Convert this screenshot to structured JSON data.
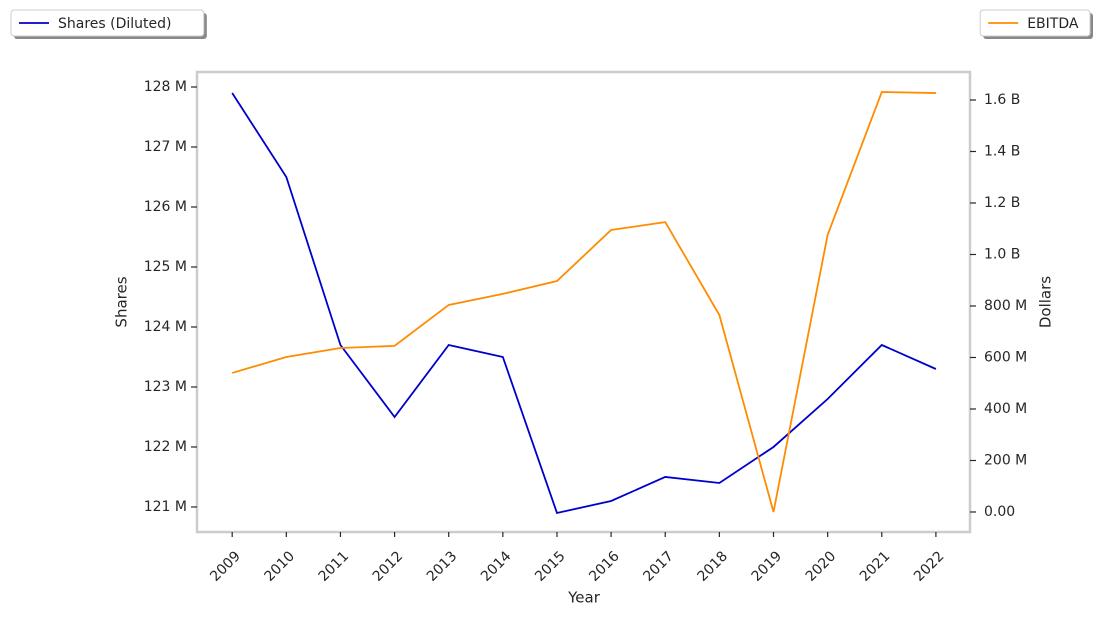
{
  "chart_data": {
    "type": "line",
    "x_label": "Year",
    "y_label": "Shares",
    "y2_label": "Dollars",
    "x": [
      2009,
      2010,
      2011,
      2012,
      2013,
      2014,
      2015,
      2016,
      2017,
      2018,
      2019,
      2020,
      2021,
      2022
    ],
    "xlim": [
      2008.35,
      2022.63
    ],
    "xticks": [
      2009,
      2010,
      2011,
      2012,
      2013,
      2014,
      2015,
      2016,
      2017,
      2018,
      2019,
      2020,
      2021,
      2022
    ],
    "ylim": [
      120583000,
      128250000
    ],
    "yticks": [
      {
        "value": 121000000,
        "label": "121 M"
      },
      {
        "value": 122000000,
        "label": "122 M"
      },
      {
        "value": 123000000,
        "label": "123 M"
      },
      {
        "value": 124000000,
        "label": "124 M"
      },
      {
        "value": 125000000,
        "label": "125 M"
      },
      {
        "value": 126000000,
        "label": "126 M"
      },
      {
        "value": 127000000,
        "label": "127 M"
      },
      {
        "value": 128000000,
        "label": "128 M"
      }
    ],
    "y2lim": [
      -77700000,
      1708700000
    ],
    "y2ticks": [
      {
        "value": 0,
        "label": "0.00"
      },
      {
        "value": 200000000,
        "label": "200 M"
      },
      {
        "value": 400000000,
        "label": "400 M"
      },
      {
        "value": 600000000,
        "label": "600 M"
      },
      {
        "value": 800000000,
        "label": "800 M"
      },
      {
        "value": 1000000000,
        "label": "1.0 B"
      },
      {
        "value": 1200000000,
        "label": "1.2 B"
      },
      {
        "value": 1400000000,
        "label": "1.4 B"
      },
      {
        "value": 1600000000,
        "label": "1.6 B"
      }
    ],
    "grid": false,
    "series": [
      {
        "name": "Shares (Diluted)",
        "color": "#0000cc",
        "axis": "y",
        "values": [
          127900000,
          126500000,
          123700000,
          122500000,
          123700000,
          123500000,
          120900000,
          121100000,
          121500000,
          121400000,
          122000000,
          122800000,
          123700000,
          123300000
        ]
      },
      {
        "name": "EBITDA",
        "color": "#ff8c00",
        "axis": "y2",
        "values": [
          540000000,
          602000000,
          637000000,
          645000000,
          804000000,
          847000000,
          897000000,
          1095000000,
          1126000000,
          765000000,
          0,
          1076000000,
          1631000000,
          1627000000
        ]
      }
    ]
  }
}
